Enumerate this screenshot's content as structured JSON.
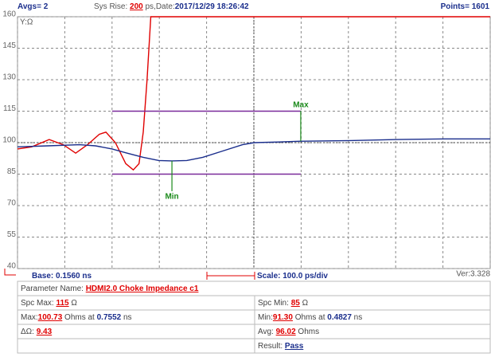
{
  "header": {
    "avgs_label": "Avgs= ",
    "avgs": 2,
    "rise_label": "Sys Rise: ",
    "rise": 200,
    "rise_unit": " ps,Date:",
    "date": "2017/12/29 18:26:42",
    "points_label": "Points= ",
    "points": 1601
  },
  "chart_data": {
    "type": "line",
    "y_label": "Y:Ω",
    "xlim": [
      0.156,
      1.156
    ],
    "xticks": [
      0.156,
      0.256,
      0.356,
      0.456,
      0.556,
      0.656,
      0.756,
      0.856,
      0.956,
      1.056,
      1.156
    ],
    "ylim": [
      40,
      160
    ],
    "yticks": [
      40,
      55,
      70,
      85,
      100,
      115,
      130,
      145,
      160
    ],
    "grid": true,
    "series": [
      {
        "color": "#e00000",
        "x": [
          0.156,
          0.186,
          0.223,
          0.253,
          0.279,
          0.304,
          0.329,
          0.343,
          0.363,
          0.385,
          0.401,
          0.413,
          0.422,
          0.43,
          0.438,
          1.156
        ],
        "values": [
          97,
          98,
          101.5,
          99,
          95,
          99,
          104,
          105,
          100,
          90,
          87,
          90,
          105,
          130,
          160,
          160
        ]
      },
      {
        "color": "#1a2e8c",
        "x": [
          0.156,
          0.22,
          0.287,
          0.321,
          0.356,
          0.388,
          0.422,
          0.455,
          0.4827,
          0.514,
          0.548,
          0.59,
          0.632,
          0.657,
          0.707,
          0.7552,
          0.859,
          0.959,
          1.06,
          1.156
        ],
        "values": [
          98,
          98.5,
          99,
          98.5,
          97,
          95,
          93,
          91.5,
          91.3,
          91.5,
          93,
          96,
          99,
          100,
          100.3,
          100.7,
          101,
          101.5,
          101.8,
          101.8
        ]
      },
      {
        "color": "#7a2a9a",
        "x": [
          0.356,
          0.7552
        ],
        "values": [
          115,
          115
        ]
      },
      {
        "color": "#7a2a9a",
        "x": [
          0.356,
          0.7552
        ],
        "values": [
          85,
          85
        ]
      }
    ],
    "markers": [
      {
        "label": "Max",
        "color": "#1a8a1a"
      },
      {
        "label": "Min",
        "color": "#1a8a1a"
      }
    ]
  },
  "footer": {
    "base_label": "Base: ",
    "base": {
      "value": 0.156,
      "label": "0.1560"
    },
    "base_unit": " ns",
    "scale_label": "Scale: ",
    "scale": {
      "value": 100,
      "label": "100.0"
    },
    "scale_unit": " ps/div",
    "version": "Ver:3.328"
  },
  "table": {
    "param_label": "Parameter Name: ",
    "param": "HDMI2.0 Choke Impedance c1",
    "spc_max_label": "Spc Max: ",
    "spc_max": 115,
    "spc_min_label": "Spc Min: ",
    "spc_min": 85,
    "ohm": " Ω",
    "max_label": "Max:",
    "max": 100.73,
    "ohms_at": " Ohms at ",
    "max_at": 0.7552,
    "ns": " ns",
    "min_label": "Min:",
    "min": {
      "value": 91.3,
      "label": "91.30"
    },
    "min_at": 0.4827,
    "delta_label": "ΔΩ: ",
    "delta": 9.43,
    "avg_label": "Avg: ",
    "avg": 96.02,
    "ohms": " Ohms",
    "result_label": "Result: ",
    "result": "Pass"
  }
}
